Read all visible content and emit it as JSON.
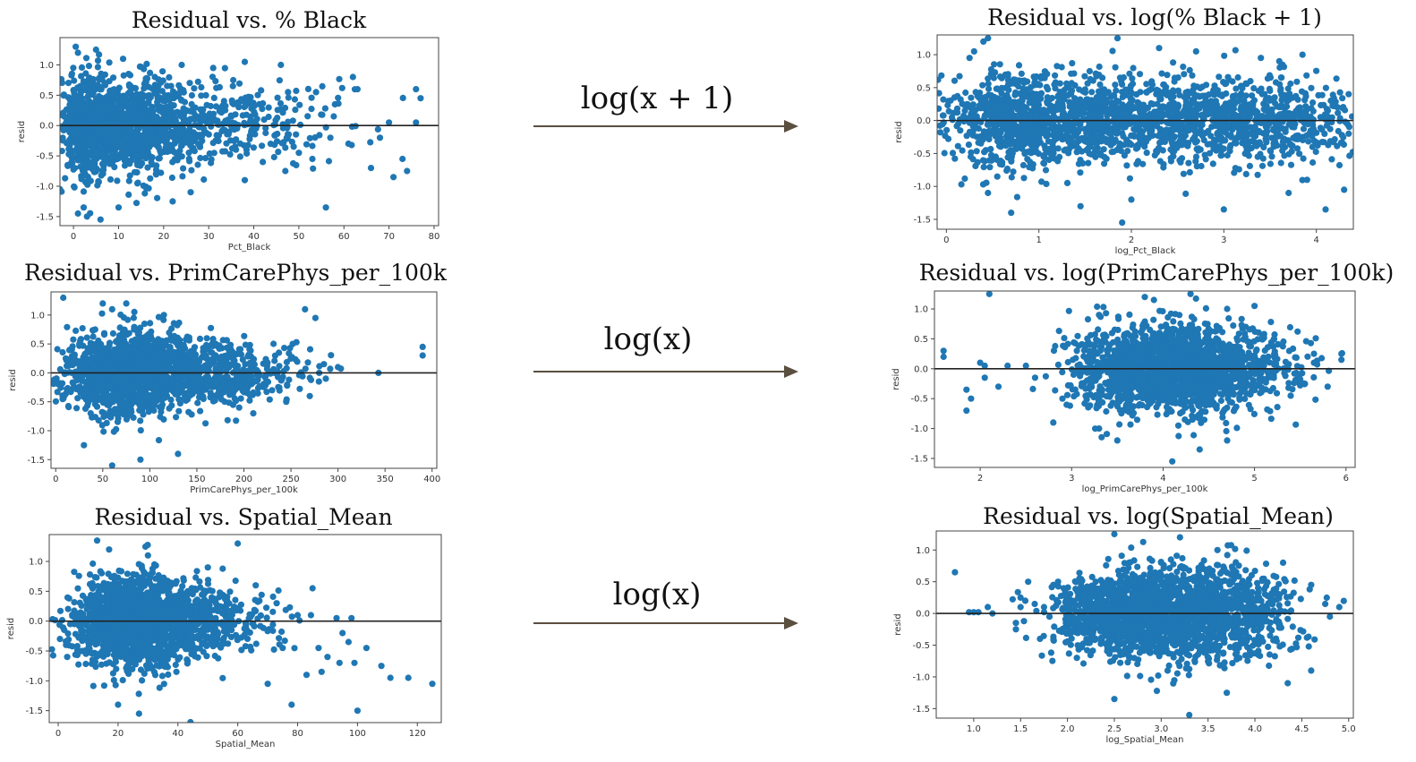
{
  "colors": {
    "point": "#1f77b4",
    "zero_line": "#222222",
    "arrow": "#5b4f3f"
  },
  "transforms": [
    {
      "label": "log(x + 1)"
    },
    {
      "label": "log(x)"
    },
    {
      "label": "log(x)"
    }
  ],
  "chart_data": [
    {
      "type": "scatter",
      "id": "p1",
      "title": "Residual vs. % Black",
      "xlabel": "Pct_Black",
      "ylabel": "resid",
      "xlim": [
        -3,
        81
      ],
      "ylim": [
        -1.65,
        1.45
      ],
      "xticks": [
        0,
        10,
        20,
        30,
        40,
        50,
        60,
        70,
        80
      ],
      "yticks": [
        -1.5,
        -1.0,
        -0.5,
        0.0,
        0.5,
        1.0
      ],
      "hline": 0,
      "points": [
        [
          0.5,
          1.3
        ],
        [
          1,
          1.2
        ],
        [
          5,
          1.25
        ],
        [
          11,
          1.1
        ],
        [
          24,
          1.0
        ],
        [
          31,
          0.95
        ],
        [
          38,
          1.05
        ],
        [
          46,
          1.0
        ],
        [
          62,
          0.8
        ],
        [
          63,
          0.6
        ],
        [
          76,
          0.6
        ],
        [
          77,
          0.45
        ],
        [
          70,
          0.05
        ],
        [
          76,
          0.05
        ],
        [
          57,
          -0.2
        ],
        [
          61,
          -0.3
        ],
        [
          50,
          -0.45
        ],
        [
          47,
          -0.75
        ],
        [
          66,
          -0.7
        ],
        [
          71,
          -0.85
        ],
        [
          74,
          -0.75
        ],
        [
          73,
          -0.55
        ],
        [
          56,
          -1.35
        ],
        [
          38,
          -0.9
        ],
        [
          26,
          -1.1
        ],
        [
          22,
          -1.25
        ],
        [
          10,
          -1.35
        ],
        [
          3,
          -1.5
        ],
        [
          6,
          -1.55
        ],
        [
          1,
          -1.45
        ],
        [
          42,
          -0.6
        ],
        [
          53,
          -0.55
        ],
        [
          68,
          -0.2
        ],
        [
          58,
          0.35
        ]
      ],
      "clusters": [
        {
          "cx": 12,
          "cy": 0.0,
          "sx": 7.5,
          "sy": 0.38,
          "n": 900
        },
        {
          "cx": 3,
          "cy": 0.0,
          "sx": 2.5,
          "sy": 0.45,
          "n": 350
        },
        {
          "cx": 30,
          "cy": 0.05,
          "sx": 9,
          "sy": 0.35,
          "n": 250
        },
        {
          "cx": 48,
          "cy": 0.0,
          "sx": 8,
          "sy": 0.32,
          "n": 90
        }
      ]
    },
    {
      "type": "scatter",
      "id": "p2",
      "title": "Residual vs. log(% Black + 1)",
      "xlabel": "log_Pct_Black",
      "ylabel": "resid",
      "xlim": [
        -0.1,
        4.4
      ],
      "ylim": [
        -1.65,
        1.3
      ],
      "xticks": [
        0,
        1,
        2,
        3,
        4
      ],
      "yticks": [
        -1.5,
        -1.0,
        -0.5,
        0.0,
        0.5,
        1.0
      ],
      "hline": 0,
      "points": [
        [
          0.45,
          1.25
        ],
        [
          0.4,
          1.2
        ],
        [
          0.3,
          1.05
        ],
        [
          0.25,
          0.95
        ],
        [
          1.85,
          1.25
        ],
        [
          2.3,
          1.1
        ],
        [
          2.7,
          1.05
        ],
        [
          3.4,
          0.95
        ],
        [
          3.6,
          0.9
        ],
        [
          3.85,
          1.0
        ],
        [
          4.35,
          0.4
        ],
        [
          4.35,
          -0.2
        ],
        [
          4.3,
          -1.05
        ],
        [
          4.1,
          -1.35
        ],
        [
          3.0,
          -1.35
        ],
        [
          1.9,
          -1.55
        ],
        [
          1.45,
          -1.3
        ],
        [
          0.7,
          -1.4
        ],
        [
          0.45,
          -1.1
        ],
        [
          0.55,
          -0.85
        ],
        [
          2.0,
          -1.2
        ],
        [
          3.7,
          -1.1
        ],
        [
          0.15,
          -0.15
        ],
        [
          0.2,
          0.15
        ],
        [
          3.9,
          -0.9
        ]
      ],
      "clusters": [
        {
          "cx": 1.8,
          "cy": 0.0,
          "sx": 1.0,
          "sy": 0.33,
          "n": 1300
        },
        {
          "cx": 0.7,
          "cy": 0.0,
          "sx": 0.35,
          "sy": 0.38,
          "n": 350
        },
        {
          "cx": 3.4,
          "cy": 0.0,
          "sx": 0.5,
          "sy": 0.32,
          "n": 450
        }
      ]
    },
    {
      "type": "scatter",
      "id": "p3",
      "title": "Residual vs. PrimCarePhys_per_100k",
      "xlabel": "PrimCarePhys_per_100k",
      "ylabel": "resid",
      "xlim": [
        -5,
        405
      ],
      "ylim": [
        -1.65,
        1.4
      ],
      "xticks": [
        0,
        50,
        100,
        150,
        200,
        250,
        300,
        350,
        400
      ],
      "yticks": [
        -1.5,
        -1.0,
        -0.5,
        0.0,
        0.5,
        1.0
      ],
      "hline": 0,
      "points": [
        [
          8,
          1.3
        ],
        [
          50,
          1.2
        ],
        [
          60,
          1.1
        ],
        [
          75,
          1.2
        ],
        [
          265,
          1.1
        ],
        [
          276,
          0.95
        ],
        [
          390,
          0.45
        ],
        [
          390,
          0.3
        ],
        [
          285,
          0.15
        ],
        [
          280,
          0.0
        ],
        [
          343,
          0.0
        ],
        [
          287,
          -0.1
        ],
        [
          270,
          -0.4
        ],
        [
          210,
          -0.7
        ],
        [
          195,
          -0.6
        ],
        [
          130,
          -1.4
        ],
        [
          90,
          -1.5
        ],
        [
          60,
          -1.6
        ],
        [
          30,
          -1.25
        ],
        [
          230,
          -0.3
        ],
        [
          245,
          -0.5
        ],
        [
          300,
          0.1
        ],
        [
          170,
          0.5
        ],
        [
          115,
          1.0
        ]
      ],
      "clusters": [
        {
          "cx": 75,
          "cy": 0.0,
          "sx": 35,
          "sy": 0.35,
          "n": 1300
        },
        {
          "cx": 150,
          "cy": 0.0,
          "sx": 35,
          "sy": 0.3,
          "n": 400
        },
        {
          "cx": 215,
          "cy": 0.0,
          "sx": 30,
          "sy": 0.22,
          "n": 120
        }
      ]
    },
    {
      "type": "scatter",
      "id": "p4",
      "title": "Residual vs. log(PrimCarePhys_per_100k)",
      "xlabel": "log_PrimCarePhys_per_100k",
      "ylabel": "resid",
      "xlim": [
        1.5,
        6.1
      ],
      "ylim": [
        -1.65,
        1.3
      ],
      "xticks": [
        2,
        3,
        4,
        5,
        6
      ],
      "yticks": [
        -1.5,
        -1.0,
        -0.5,
        0.0,
        0.5,
        1.0
      ],
      "hline": 0,
      "points": [
        [
          1.6,
          0.3
        ],
        [
          1.6,
          0.2
        ],
        [
          1.85,
          -0.35
        ],
        [
          1.85,
          -0.7
        ],
        [
          1.9,
          -0.5
        ],
        [
          2.0,
          0.1
        ],
        [
          2.05,
          -0.15
        ],
        [
          2.05,
          0.05
        ],
        [
          2.1,
          1.25
        ],
        [
          2.2,
          -0.3
        ],
        [
          2.3,
          0.05
        ],
        [
          2.5,
          0.05
        ],
        [
          2.6,
          -0.15
        ],
        [
          2.8,
          -0.9
        ],
        [
          2.9,
          -0.5
        ],
        [
          3.3,
          0.9
        ],
        [
          3.8,
          1.2
        ],
        [
          3.9,
          1.15
        ],
        [
          4.3,
          1.25
        ],
        [
          4.7,
          1.0
        ],
        [
          5.0,
          1.05
        ],
        [
          5.65,
          0.25
        ],
        [
          5.65,
          0.1
        ],
        [
          5.8,
          -0.3
        ],
        [
          5.95,
          0.25
        ],
        [
          5.95,
          0.15
        ],
        [
          4.1,
          -1.55
        ],
        [
          4.4,
          -1.35
        ],
        [
          3.5,
          -1.2
        ],
        [
          3.3,
          -1.0
        ],
        [
          4.7,
          -1.2
        ]
      ],
      "clusters": [
        {
          "cx": 4.15,
          "cy": 0.0,
          "sx": 0.42,
          "sy": 0.35,
          "n": 1700
        },
        {
          "cx": 3.4,
          "cy": 0.0,
          "sx": 0.3,
          "sy": 0.35,
          "n": 260
        },
        {
          "cx": 5.0,
          "cy": 0.0,
          "sx": 0.3,
          "sy": 0.32,
          "n": 200
        }
      ]
    },
    {
      "type": "scatter",
      "id": "p5",
      "title": "Residual vs. Spatial_Mean",
      "xlabel": "Spatial_Mean",
      "ylabel": "resid",
      "xlim": [
        -3,
        128
      ],
      "ylim": [
        -1.7,
        1.45
      ],
      "xticks": [
        0,
        20,
        40,
        60,
        80,
        100,
        120
      ],
      "yticks": [
        -1.5,
        -1.0,
        -0.5,
        0.0,
        0.5,
        1.0
      ],
      "hline": 0,
      "points": [
        [
          13,
          1.35
        ],
        [
          17,
          1.2
        ],
        [
          60,
          1.3
        ],
        [
          30,
          1.1
        ],
        [
          50,
          0.9
        ],
        [
          66,
          0.6
        ],
        [
          73,
          0.3
        ],
        [
          85,
          0.55
        ],
        [
          93,
          0.05
        ],
        [
          98,
          0.05
        ],
        [
          95,
          -0.2
        ],
        [
          97,
          -0.35
        ],
        [
          87,
          -0.45
        ],
        [
          90,
          -0.6
        ],
        [
          88,
          -0.85
        ],
        [
          94,
          -0.7
        ],
        [
          99,
          -0.7
        ],
        [
          103,
          -0.45
        ],
        [
          108,
          -0.75
        ],
        [
          111,
          -0.95
        ],
        [
          117,
          -0.95
        ],
        [
          125,
          -1.05
        ],
        [
          100,
          -1.5
        ],
        [
          78,
          -1.4
        ],
        [
          83,
          -0.9
        ],
        [
          70,
          -1.05
        ],
        [
          27,
          -1.55
        ],
        [
          20,
          -1.4
        ],
        [
          8,
          -0.5
        ],
        [
          3,
          -0.6
        ],
        [
          4,
          -0.05
        ],
        [
          80,
          0.1
        ],
        [
          75,
          -0.45
        ]
      ],
      "clusters": [
        {
          "cx": 25,
          "cy": 0.0,
          "sx": 10,
          "sy": 0.38,
          "n": 1400
        },
        {
          "cx": 42,
          "cy": 0.0,
          "sx": 9,
          "sy": 0.3,
          "n": 350
        },
        {
          "cx": 60,
          "cy": 0.0,
          "sx": 8,
          "sy": 0.25,
          "n": 120
        }
      ]
    },
    {
      "type": "scatter",
      "id": "p6",
      "title": "Residual vs. log(Spatial_Mean)",
      "xlabel": "log_Spatial_Mean",
      "ylabel": "resid",
      "xlim": [
        0.6,
        5.05
      ],
      "ylim": [
        -1.65,
        1.3
      ],
      "xticks": [
        1.0,
        1.5,
        2.0,
        2.5,
        3.0,
        3.5,
        4.0,
        4.5,
        5.0
      ],
      "yticks": [
        -1.5,
        -1.0,
        -0.5,
        0.0,
        0.5,
        1.0
      ],
      "hline": 0,
      "points": [
        [
          0.8,
          0.65
        ],
        [
          0.95,
          0.02
        ],
        [
          1.0,
          0.02
        ],
        [
          1.05,
          0.02
        ],
        [
          1.15,
          0.1
        ],
        [
          1.2,
          0.0
        ],
        [
          1.45,
          -0.15
        ],
        [
          1.45,
          -0.25
        ],
        [
          1.5,
          0.25
        ],
        [
          1.5,
          0.1
        ],
        [
          1.55,
          0.2
        ],
        [
          1.65,
          0.15
        ],
        [
          1.75,
          0.1
        ],
        [
          1.85,
          0.45
        ],
        [
          1.9,
          0.5
        ],
        [
          2.5,
          1.25
        ],
        [
          3.2,
          1.2
        ],
        [
          3.6,
          1.0
        ],
        [
          4.3,
          0.8
        ],
        [
          4.6,
          0.45
        ],
        [
          4.75,
          0.15
        ],
        [
          4.8,
          -0.05
        ],
        [
          4.6,
          -0.9
        ],
        [
          4.35,
          -1.1
        ],
        [
          3.3,
          -1.6
        ],
        [
          2.5,
          -1.35
        ],
        [
          3.7,
          -1.25
        ],
        [
          2.1,
          -0.7
        ],
        [
          4.9,
          0.1
        ]
      ],
      "clusters": [
        {
          "cx": 3.05,
          "cy": 0.0,
          "sx": 0.5,
          "sy": 0.35,
          "n": 1700
        },
        {
          "cx": 2.3,
          "cy": 0.0,
          "sx": 0.22,
          "sy": 0.3,
          "n": 220
        },
        {
          "cx": 3.95,
          "cy": 0.0,
          "sx": 0.28,
          "sy": 0.32,
          "n": 220
        }
      ]
    }
  ]
}
